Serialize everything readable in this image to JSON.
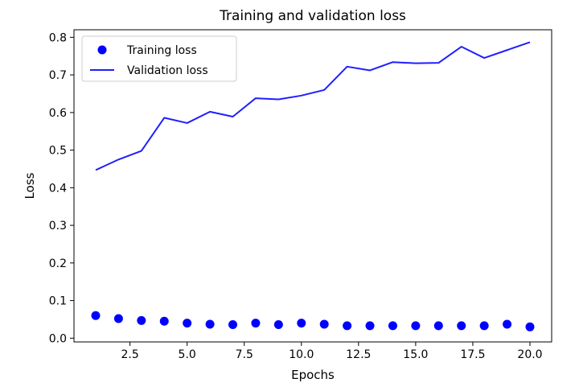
{
  "chart_data": {
    "type": "line",
    "title": "Training and validation loss",
    "xlabel": "Epochs",
    "ylabel": "Loss",
    "xlim": [
      0.05,
      20.95
    ],
    "ylim": [
      -0.01,
      0.82
    ],
    "xticks": [
      2.5,
      5.0,
      7.5,
      10.0,
      12.5,
      15.0,
      17.5,
      20.0
    ],
    "xtick_labels": [
      "2.5",
      "5.0",
      "7.5",
      "10.0",
      "12.5",
      "15.0",
      "17.5",
      "20.0"
    ],
    "yticks": [
      0.0,
      0.1,
      0.2,
      0.3,
      0.4,
      0.5,
      0.6,
      0.7,
      0.8
    ],
    "ytick_labels": [
      "0.0",
      "0.1",
      "0.2",
      "0.3",
      "0.4",
      "0.5",
      "0.6",
      "0.7",
      "0.8"
    ],
    "grid": false,
    "legend_position": "top-left",
    "x": [
      1,
      2,
      3,
      4,
      5,
      6,
      7,
      8,
      9,
      10,
      11,
      12,
      13,
      14,
      15,
      16,
      17,
      18,
      19,
      20
    ],
    "series": [
      {
        "name": "Training loss",
        "style": "dots",
        "color": "#0000ff",
        "values": [
          0.06,
          0.052,
          0.047,
          0.045,
          0.04,
          0.037,
          0.036,
          0.04,
          0.036,
          0.04,
          0.037,
          0.033,
          0.033,
          0.033,
          0.033,
          0.033,
          0.033,
          0.033,
          0.037,
          0.03
        ]
      },
      {
        "name": "Validation loss",
        "style": "line",
        "color": "#1f1fff",
        "values": [
          0.447,
          0.475,
          0.498,
          0.586,
          0.572,
          0.602,
          0.589,
          0.638,
          0.635,
          0.645,
          0.66,
          0.722,
          0.712,
          0.734,
          0.731,
          0.732,
          0.775,
          0.745,
          0.766,
          0.787
        ]
      }
    ]
  }
}
